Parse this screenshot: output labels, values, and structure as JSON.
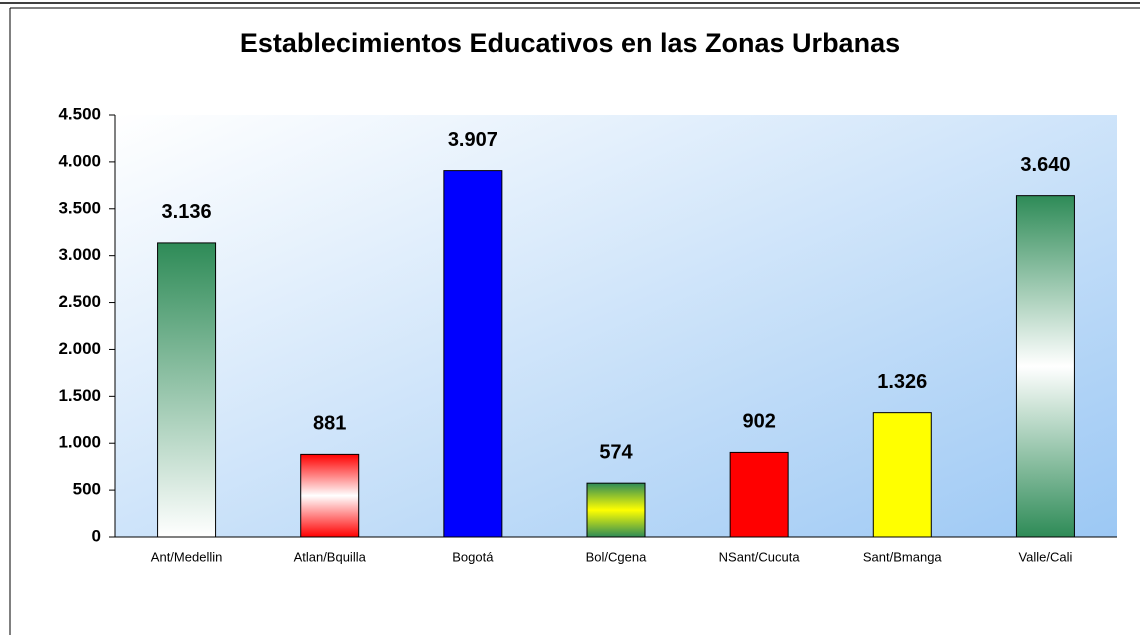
{
  "chart_data": {
    "type": "bar",
    "title": "Establecimientos Educativos en las Zonas Urbanas",
    "categories": [
      "Ant/Medellin",
      "Atlan/Bquilla",
      "Bogotá",
      "Bol/Cgena",
      "NSant/Cucuta",
      "Sant/Bmanga",
      "Valle/Cali"
    ],
    "values": [
      3136,
      881,
      3907,
      574,
      902,
      1326,
      3640
    ],
    "value_labels": [
      "3.136",
      "881",
      "3.907",
      "574",
      "902",
      "1.326",
      "3.640"
    ],
    "bar_colors": [
      [
        "#2e8b57",
        "#ffffff"
      ],
      [
        "#ff0000",
        "#ffffff",
        "#ff0000"
      ],
      [
        "#0000ff"
      ],
      [
        "#2e8b57",
        "#ffff00",
        "#2e8b57"
      ],
      [
        "#ff0000"
      ],
      [
        "#ffff00"
      ],
      [
        "#2e8b57",
        "#ffffff",
        "#2e8b57"
      ]
    ],
    "ylim": [
      0,
      4500
    ],
    "yticks": [
      0,
      500,
      {
        "value": 1000,
        "label": "1.000"
      },
      {
        "value": 1500,
        "label": "1.500"
      },
      {
        "value": 2000,
        "label": "2.000"
      },
      {
        "value": 2500,
        "label": "2.500"
      },
      {
        "value": 3000,
        "label": "3.000"
      },
      {
        "value": 3500,
        "label": "3.500"
      },
      {
        "value": 4000,
        "label": "4.000"
      },
      {
        "value": 4500,
        "label": "4.500"
      }
    ]
  }
}
